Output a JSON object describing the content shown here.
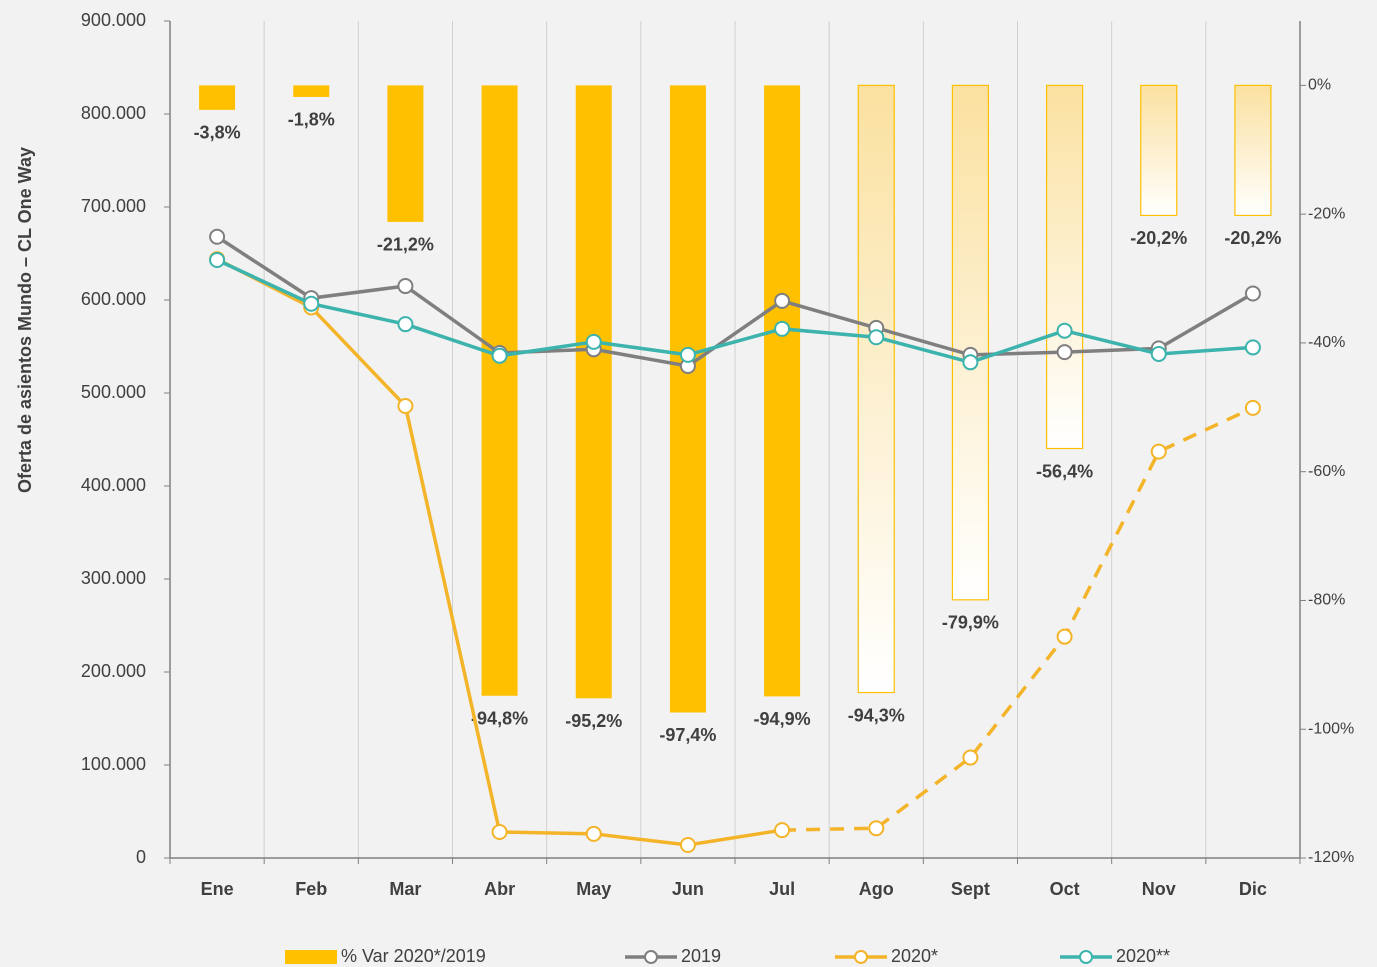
{
  "chart_data": {
    "type": "combo",
    "ylabel": "Oferta de asientos Mundo – CL  One Way",
    "categories": [
      "Ene",
      "Feb",
      "Mar",
      "Abr",
      "May",
      "Jun",
      "Jul",
      "Ago",
      "Sept",
      "Oct",
      "Nov",
      "Dic"
    ],
    "ylim": [
      0,
      900000
    ],
    "yticks": [
      0,
      {
        "value": 100000,
        "label": "100.000"
      },
      {
        "value": 200000,
        "label": "200.000"
      },
      {
        "value": 300000,
        "label": "300.000"
      },
      {
        "value": 400000,
        "label": "400.000"
      },
      {
        "value": 500000,
        "label": "500.000"
      },
      {
        "value": 600000,
        "label": "600.000"
      },
      {
        "value": 700000,
        "label": "700.000"
      },
      {
        "value": 800000,
        "label": "800.000"
      },
      {
        "value": 900000,
        "label": "900.000"
      }
    ],
    "y2lim": [
      -120,
      10
    ],
    "y2ticks": [
      {
        "value": 0,
        "label": "0%"
      },
      {
        "value": -20,
        "label": "-20%"
      },
      {
        "value": -40,
        "label": "-40%"
      },
      {
        "value": -60,
        "label": "-60%"
      },
      {
        "value": -80,
        "label": "-80%"
      },
      {
        "value": -100,
        "label": "-100%"
      },
      {
        "value": -120,
        "label": "-120%"
      }
    ],
    "grid": "vertical",
    "legend": "bottom",
    "series": [
      {
        "name": "% Var 2020*/2019",
        "type": "bar",
        "axis": "y2",
        "color": "#FFC000",
        "colors": [
          "#FFC000",
          "#FFC000",
          "#FFC000",
          "#FFC000",
          "#FFC000",
          "#FFC000",
          "#FFC000",
          "#FBE1A0",
          "#FBE1A0",
          "#FBE1A0",
          "#FBE1A0",
          "#FBE1A0"
        ],
        "values": [
          -3.8,
          -1.8,
          -21.2,
          -94.8,
          -95.2,
          -97.4,
          -94.9,
          -94.3,
          -79.9,
          -56.4,
          -20.2,
          -20.2
        ],
        "value_labels": [
          "-3,8%",
          "-1,8%",
          "-21,2%",
          "-94,8%",
          "-95,2%",
          "-97,4%",
          "-94,9%",
          "-94,3%",
          "-79,9%",
          "-56,4%",
          "-20,2%",
          "-20,2%"
        ]
      },
      {
        "name": "2019",
        "type": "line",
        "color": "#7F7F7F",
        "values": [
          668000,
          602000,
          615000,
          543000,
          547000,
          529000,
          599000,
          570000,
          541000,
          544000,
          548000,
          607000
        ]
      },
      {
        "name": "2020*",
        "type": "line",
        "color": "#F4B429",
        "dashed_from": 6,
        "values": [
          644000,
          592000,
          486000,
          28000,
          26000,
          14000,
          30000,
          32000,
          108000,
          238000,
          437000,
          484000
        ]
      },
      {
        "name": "2020**",
        "type": "line",
        "color": "#3CB3AC",
        "values": [
          643000,
          596000,
          574000,
          540000,
          555000,
          541000,
          569000,
          560000,
          533000,
          567000,
          542000,
          549000
        ]
      }
    ]
  }
}
